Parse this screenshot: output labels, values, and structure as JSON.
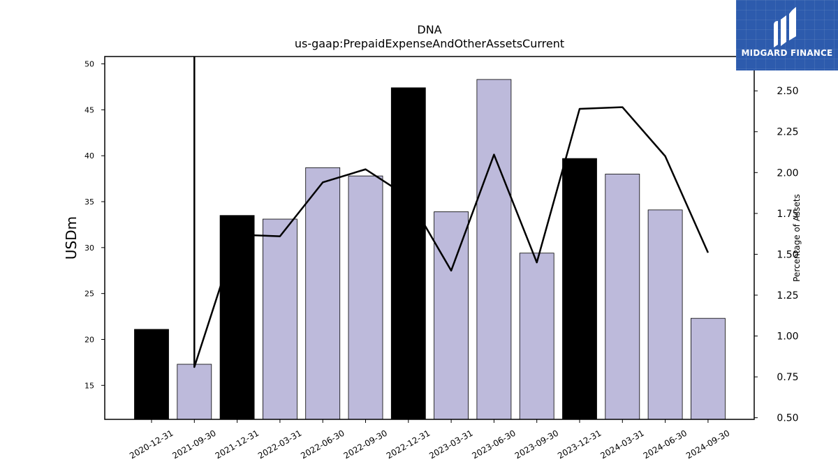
{
  "chart_data": {
    "type": "bar+line",
    "title": "DNA",
    "subtitle": "us-gaap:PrepaidExpenseAndOtherAssetsCurrent",
    "ylabel_left": "USDm",
    "ylabel_right": "Percentage of Assets",
    "categories": [
      "2020-12-31",
      "2021-09-30",
      "2021-12-31",
      "2022-03-31",
      "2022-06-30",
      "2022-09-30",
      "2022-12-31",
      "2023-03-31",
      "2023-06-30",
      "2023-09-30",
      "2023-12-31",
      "2024-03-31",
      "2024-06-30",
      "2024-09-30"
    ],
    "bar_values": [
      21.1,
      17.3,
      33.5,
      33.1,
      38.7,
      37.8,
      47.4,
      33.9,
      48.3,
      29.4,
      39.7,
      38.0,
      34.1,
      22.3
    ],
    "bar_highlight": [
      true,
      false,
      true,
      false,
      false,
      false,
      true,
      false,
      false,
      false,
      true,
      false,
      false,
      false
    ],
    "line_values": [
      null,
      0.81,
      1.62,
      1.61,
      1.94,
      2.02,
      1.85,
      1.4,
      2.11,
      1.45,
      2.39,
      2.4,
      2.1,
      1.51
    ],
    "line_start_top": true,
    "ylim_left": [
      11.3,
      50.8
    ],
    "ylim_right": [
      0.49,
      2.71
    ],
    "yticks_left": [
      15,
      20,
      25,
      30,
      35,
      40,
      45,
      50
    ],
    "yticks_right": [
      "0.50",
      "0.75",
      "1.00",
      "1.25",
      "1.50",
      "1.75",
      "2.00",
      "2.25",
      "2.50"
    ],
    "yticks_right_values": [
      0.5,
      0.75,
      1.0,
      1.25,
      1.5,
      1.75,
      2.0,
      2.25,
      2.5
    ],
    "grid": false,
    "colors": {
      "bar": "#bdbadb",
      "bar_highlight": "#000000",
      "line": "#000000"
    }
  },
  "logo": {
    "text": "MIDGARD FINANCE",
    "bg": "#2d5bad"
  }
}
